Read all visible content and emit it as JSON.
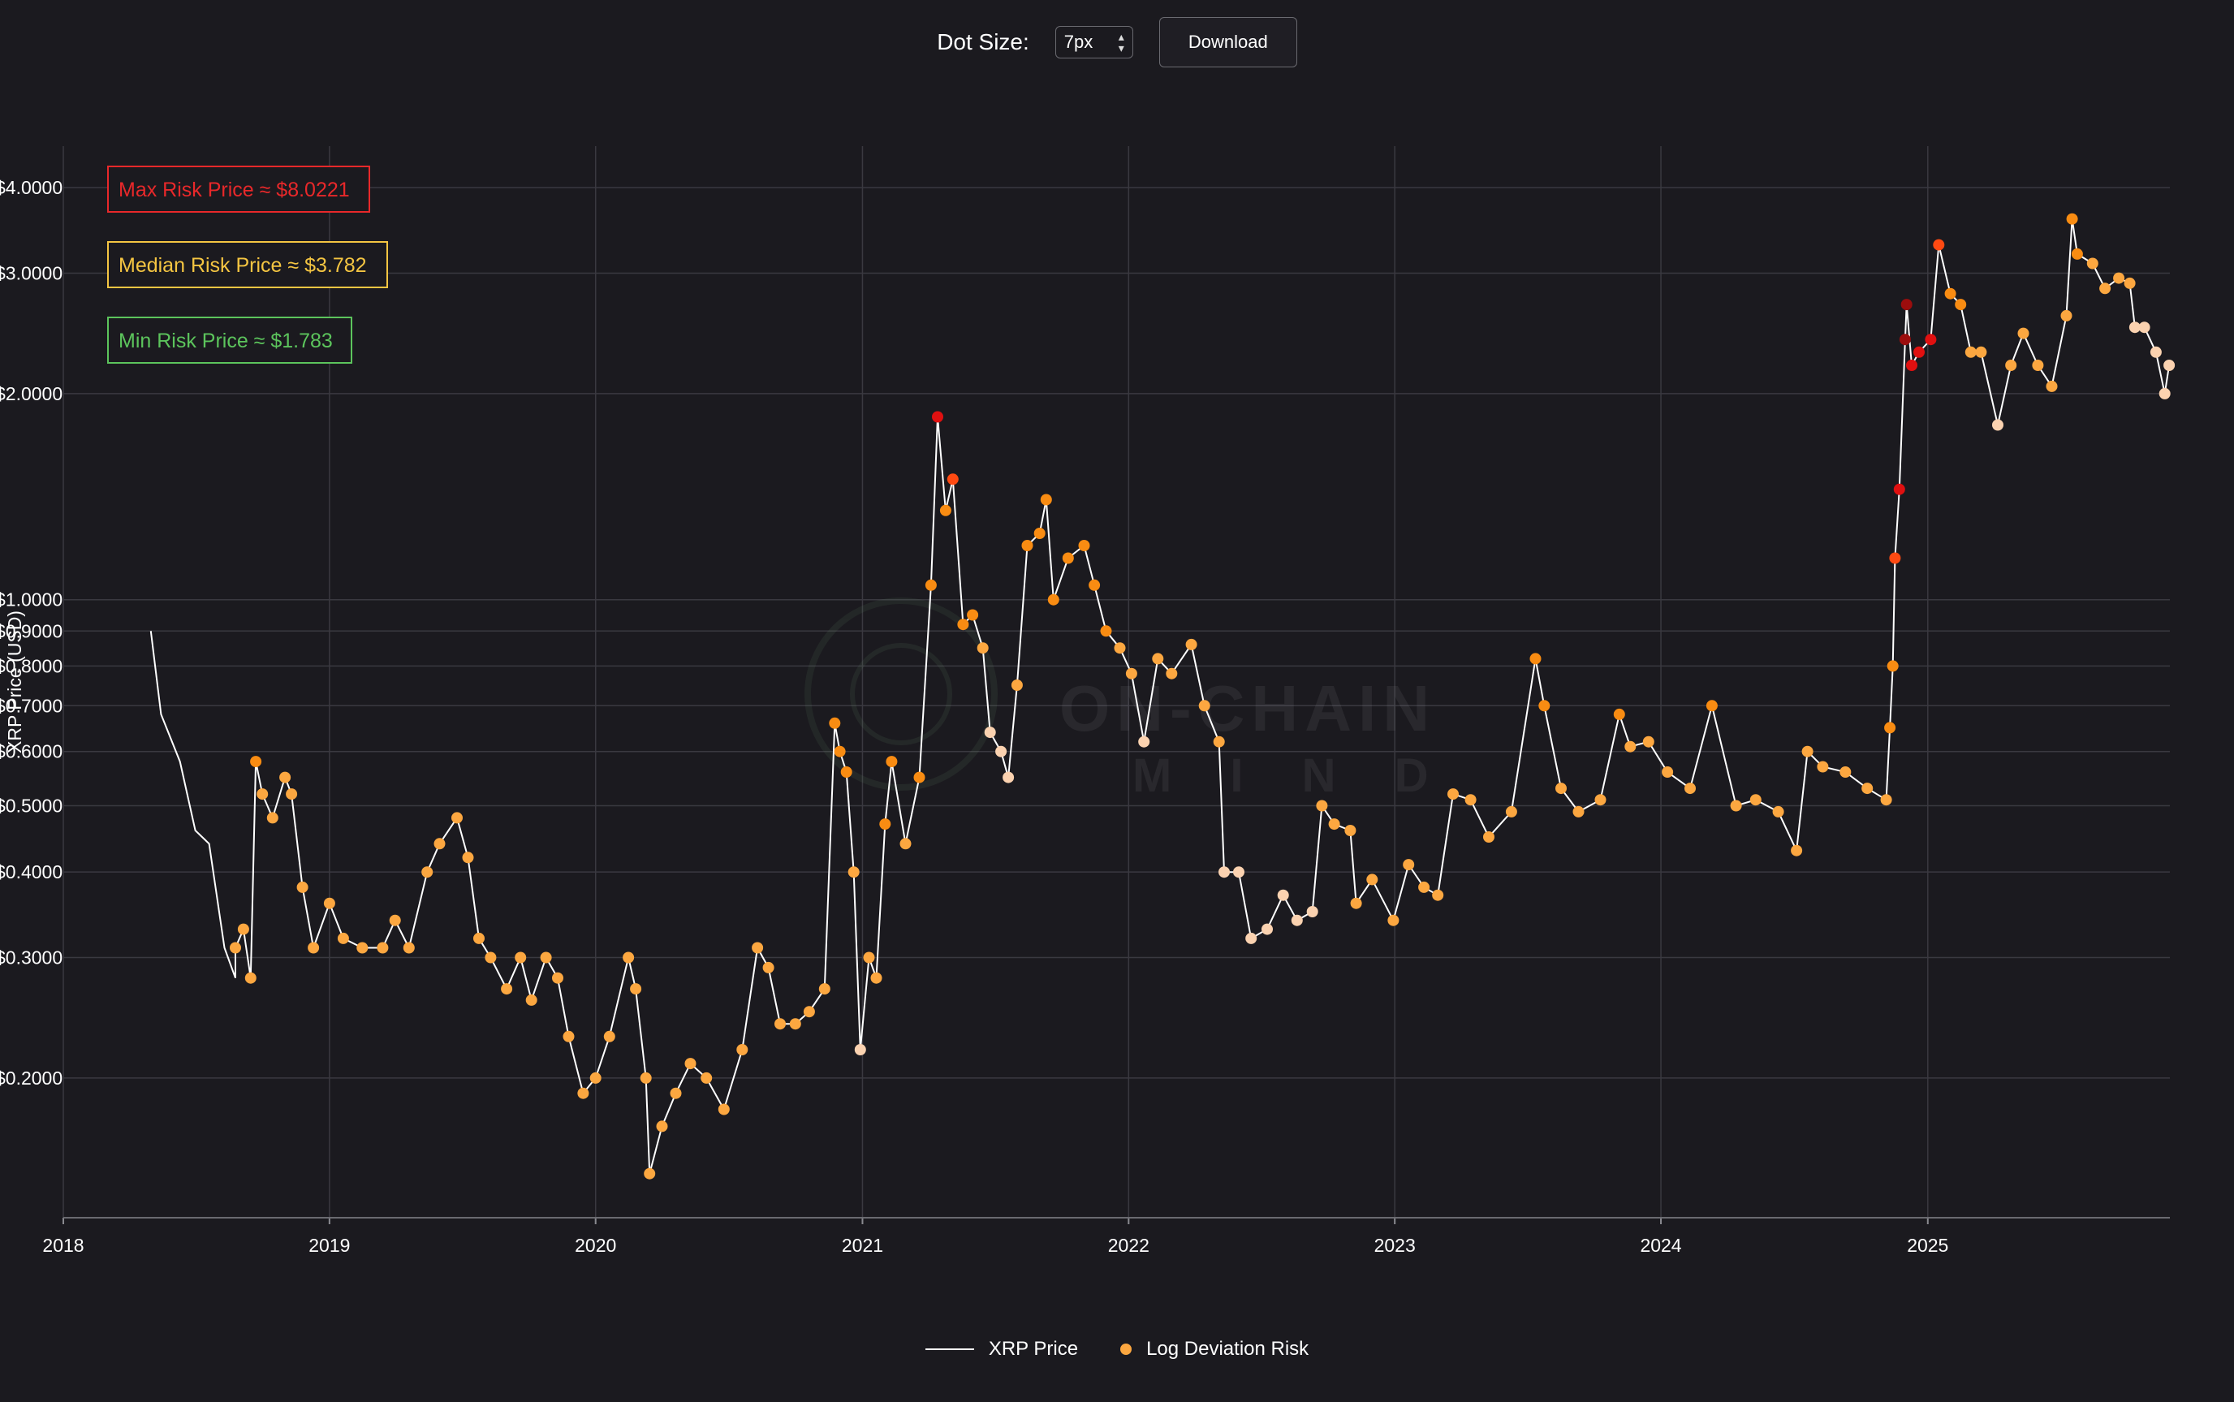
{
  "toolbar": {
    "dot_size_label": "Dot Size:",
    "dot_size_value": "7px",
    "download_label": "Download"
  },
  "annotations": [
    {
      "label": "Max Risk Price ≈ $8.0221",
      "color": "#e8282a"
    },
    {
      "label": "Median Risk Price ≈ $3.782",
      "color": "#f4c542"
    },
    {
      "label": "Min Risk Price ≈ $1.783",
      "color": "#5cc45c"
    }
  ],
  "watermark": {
    "line1": "ON-CHAIN",
    "line2": "M I N D"
  },
  "legend": {
    "price_label": "XRP Price",
    "risk_label": "Log Deviation Risk"
  },
  "colors": {
    "background": "#1b1a1f",
    "grid": "#3a3940",
    "price_line": "#ffffff",
    "risk_low": "#fbd2b0",
    "risk_mid": "#fca740",
    "risk_high": "#f98c12",
    "risk_very_high": "#ff4a12",
    "risk_extreme": "#e01010",
    "risk_max": "#9c0d0d"
  },
  "chart_data": {
    "type": "scatter",
    "title": "",
    "xlabel": "",
    "ylabel": "XRP Price (USD)",
    "y_scale": "log",
    "xlim": [
      "2018-01-01",
      "2025-11-29"
    ],
    "ylim": [
      0.125,
      4.6
    ],
    "x_ticks": [
      "2018",
      "2019",
      "2020",
      "2021",
      "2022",
      "2023",
      "2024",
      "2025"
    ],
    "y_ticks": [
      {
        "value": 4.0,
        "label": "$4.0000"
      },
      {
        "value": 3.0,
        "label": "$3.0000"
      },
      {
        "value": 2.0,
        "label": "$2.0000"
      },
      {
        "value": 1.0,
        "label": "$1.0000"
      },
      {
        "value": 0.9,
        "label": "$0.9000"
      },
      {
        "value": 0.8,
        "label": "$0.8000"
      },
      {
        "value": 0.7,
        "label": "$0.7000"
      },
      {
        "value": 0.6,
        "label": "$0.6000"
      },
      {
        "value": 0.5,
        "label": "$0.5000"
      },
      {
        "value": 0.4,
        "label": "$0.4000"
      },
      {
        "value": 0.3,
        "label": "$0.3000"
      },
      {
        "value": 0.2,
        "label": "$0.2000"
      }
    ],
    "grid": true,
    "legend_position": "bottom-center",
    "series": [
      {
        "name": "XRP Price",
        "type": "line",
        "points": [
          [
            "2018-05-01",
            0.9
          ],
          [
            "2018-05-15",
            0.68
          ],
          [
            "2018-06-10",
            0.58
          ],
          [
            "2018-07-01",
            0.46
          ],
          [
            "2018-07-20",
            0.44
          ],
          [
            "2018-08-10",
            0.31
          ],
          [
            "2018-08-25",
            0.28
          ]
        ]
      },
      {
        "name": "Log Deviation Risk",
        "type": "scatter",
        "points": [
          [
            "2018-08-25",
            0.31,
            0.4
          ],
          [
            "2018-09-05",
            0.33,
            0.45
          ],
          [
            "2018-09-15",
            0.28,
            0.4
          ],
          [
            "2018-09-22",
            0.58,
            0.55
          ],
          [
            "2018-10-01",
            0.52,
            0.5
          ],
          [
            "2018-10-15",
            0.48,
            0.5
          ],
          [
            "2018-11-01",
            0.55,
            0.5
          ],
          [
            "2018-11-10",
            0.52,
            0.5
          ],
          [
            "2018-11-25",
            0.38,
            0.45
          ],
          [
            "2018-12-10",
            0.31,
            0.42
          ],
          [
            "2019-01-01",
            0.36,
            0.45
          ],
          [
            "2019-01-20",
            0.32,
            0.42
          ],
          [
            "2019-02-15",
            0.31,
            0.42
          ],
          [
            "2019-03-15",
            0.31,
            0.42
          ],
          [
            "2019-04-01",
            0.34,
            0.45
          ],
          [
            "2019-04-20",
            0.31,
            0.42
          ],
          [
            "2019-05-15",
            0.4,
            0.48
          ],
          [
            "2019-06-01",
            0.44,
            0.5
          ],
          [
            "2019-06-25",
            0.48,
            0.52
          ],
          [
            "2019-07-10",
            0.42,
            0.48
          ],
          [
            "2019-07-25",
            0.32,
            0.42
          ],
          [
            "2019-08-10",
            0.3,
            0.42
          ],
          [
            "2019-09-01",
            0.27,
            0.4
          ],
          [
            "2019-09-20",
            0.3,
            0.42
          ],
          [
            "2019-10-05",
            0.26,
            0.4
          ],
          [
            "2019-10-25",
            0.3,
            0.42
          ],
          [
            "2019-11-10",
            0.28,
            0.42
          ],
          [
            "2019-11-25",
            0.23,
            0.38
          ],
          [
            "2019-12-15",
            0.19,
            0.35
          ],
          [
            "2020-01-01",
            0.2,
            0.36
          ],
          [
            "2020-01-20",
            0.23,
            0.4
          ],
          [
            "2020-02-15",
            0.3,
            0.45
          ],
          [
            "2020-02-25",
            0.27,
            0.42
          ],
          [
            "2020-03-10",
            0.2,
            0.38
          ],
          [
            "2020-03-15",
            0.145,
            0.32
          ],
          [
            "2020-04-01",
            0.17,
            0.35
          ],
          [
            "2020-04-20",
            0.19,
            0.36
          ],
          [
            "2020-05-10",
            0.21,
            0.38
          ],
          [
            "2020-06-01",
            0.2,
            0.36
          ],
          [
            "2020-06-25",
            0.18,
            0.34
          ],
          [
            "2020-07-20",
            0.22,
            0.4
          ],
          [
            "2020-08-10",
            0.31,
            0.48
          ],
          [
            "2020-08-25",
            0.29,
            0.45
          ],
          [
            "2020-09-10",
            0.24,
            0.42
          ],
          [
            "2020-10-01",
            0.24,
            0.42
          ],
          [
            "2020-10-20",
            0.25,
            0.42
          ],
          [
            "2020-11-10",
            0.27,
            0.44
          ],
          [
            "2020-11-24",
            0.66,
            0.6
          ],
          [
            "2020-12-01",
            0.6,
            0.58
          ],
          [
            "2020-12-10",
            0.56,
            0.55
          ],
          [
            "2020-12-20",
            0.4,
            0.45
          ],
          [
            "2020-12-29",
            0.22,
            0.2
          ],
          [
            "2021-01-10",
            0.3,
            0.4
          ],
          [
            "2021-01-20",
            0.28,
            0.38
          ],
          [
            "2021-02-01",
            0.47,
            0.55
          ],
          [
            "2021-02-10",
            0.58,
            0.58
          ],
          [
            "2021-03-01",
            0.44,
            0.5
          ],
          [
            "2021-03-20",
            0.55,
            0.55
          ],
          [
            "2021-04-05",
            1.05,
            0.65
          ],
          [
            "2021-04-14",
            1.85,
            0.82
          ],
          [
            "2021-04-25",
            1.35,
            0.7
          ],
          [
            "2021-05-05",
            1.5,
            0.72
          ],
          [
            "2021-05-19",
            0.92,
            0.55
          ],
          [
            "2021-06-01",
            0.95,
            0.6
          ],
          [
            "2021-06-15",
            0.85,
            0.5
          ],
          [
            "2021-06-25",
            0.64,
            0.2
          ],
          [
            "2021-07-10",
            0.6,
            0.2
          ],
          [
            "2021-07-20",
            0.55,
            0.15
          ],
          [
            "2021-08-01",
            0.75,
            0.45
          ],
          [
            "2021-08-15",
            1.2,
            0.65
          ],
          [
            "2021-09-01",
            1.25,
            0.66
          ],
          [
            "2021-09-10",
            1.4,
            0.7
          ],
          [
            "2021-09-20",
            1.0,
            0.6
          ],
          [
            "2021-10-10",
            1.15,
            0.62
          ],
          [
            "2021-11-01",
            1.2,
            0.62
          ],
          [
            "2021-11-15",
            1.05,
            0.58
          ],
          [
            "2021-12-01",
            0.9,
            0.55
          ],
          [
            "2021-12-20",
            0.85,
            0.5
          ],
          [
            "2022-01-05",
            0.78,
            0.45
          ],
          [
            "2022-01-22",
            0.62,
            0.25
          ],
          [
            "2022-02-10",
            0.82,
            0.5
          ],
          [
            "2022-03-01",
            0.78,
            0.48
          ],
          [
            "2022-03-28",
            0.86,
            0.52
          ],
          [
            "2022-04-15",
            0.7,
            0.42
          ],
          [
            "2022-05-05",
            0.62,
            0.35
          ],
          [
            "2022-05-12",
            0.4,
            0.15
          ],
          [
            "2022-06-01",
            0.4,
            0.15
          ],
          [
            "2022-06-18",
            0.32,
            0.1
          ],
          [
            "2022-07-10",
            0.33,
            0.12
          ],
          [
            "2022-08-01",
            0.37,
            0.2
          ],
          [
            "2022-08-20",
            0.34,
            0.18
          ],
          [
            "2022-09-10",
            0.35,
            0.2
          ],
          [
            "2022-09-23",
            0.5,
            0.5
          ],
          [
            "2022-10-10",
            0.47,
            0.45
          ],
          [
            "2022-11-01",
            0.46,
            0.45
          ],
          [
            "2022-11-09",
            0.36,
            0.3
          ],
          [
            "2022-12-01",
            0.39,
            0.35
          ],
          [
            "2022-12-30",
            0.34,
            0.3
          ],
          [
            "2023-01-20",
            0.41,
            0.4
          ],
          [
            "2023-02-10",
            0.38,
            0.38
          ],
          [
            "2023-03-01",
            0.37,
            0.35
          ],
          [
            "2023-03-22",
            0.52,
            0.5
          ],
          [
            "2023-04-15",
            0.51,
            0.48
          ],
          [
            "2023-05-10",
            0.45,
            0.42
          ],
          [
            "2023-06-10",
            0.49,
            0.45
          ],
          [
            "2023-07-13",
            0.82,
            0.6
          ],
          [
            "2023-07-25",
            0.7,
            0.55
          ],
          [
            "2023-08-17",
            0.53,
            0.48
          ],
          [
            "2023-09-10",
            0.49,
            0.45
          ],
          [
            "2023-10-10",
            0.51,
            0.47
          ],
          [
            "2023-11-05",
            0.68,
            0.55
          ],
          [
            "2023-11-20",
            0.61,
            0.5
          ],
          [
            "2023-12-15",
            0.62,
            0.5
          ],
          [
            "2024-01-10",
            0.56,
            0.48
          ],
          [
            "2024-02-10",
            0.53,
            0.47
          ],
          [
            "2024-03-11",
            0.7,
            0.55
          ],
          [
            "2024-04-13",
            0.5,
            0.45
          ],
          [
            "2024-05-10",
            0.51,
            0.46
          ],
          [
            "2024-06-10",
            0.49,
            0.45
          ],
          [
            "2024-07-05",
            0.43,
            0.4
          ],
          [
            "2024-07-20",
            0.6,
            0.5
          ],
          [
            "2024-08-10",
            0.57,
            0.5
          ],
          [
            "2024-09-10",
            0.56,
            0.5
          ],
          [
            "2024-10-10",
            0.53,
            0.48
          ],
          [
            "2024-11-05",
            0.51,
            0.48
          ],
          [
            "2024-11-10",
            0.65,
            0.6
          ],
          [
            "2024-11-14",
            0.8,
            0.7
          ],
          [
            "2024-11-17",
            1.15,
            0.8
          ],
          [
            "2024-11-23",
            1.45,
            0.85
          ],
          [
            "2024-12-01",
            2.4,
            0.95
          ],
          [
            "2024-12-03",
            2.7,
            1.0
          ],
          [
            "2024-12-10",
            2.2,
            0.88
          ],
          [
            "2024-12-20",
            2.3,
            0.85
          ],
          [
            "2025-01-05",
            2.4,
            0.82
          ],
          [
            "2025-01-16",
            3.3,
            0.78
          ],
          [
            "2025-02-01",
            2.8,
            0.6
          ],
          [
            "2025-02-15",
            2.7,
            0.58
          ],
          [
            "2025-03-01",
            2.3,
            0.45
          ],
          [
            "2025-03-15",
            2.3,
            0.42
          ],
          [
            "2025-04-07",
            1.8,
            0.25
          ],
          [
            "2025-04-25",
            2.2,
            0.4
          ],
          [
            "2025-05-12",
            2.45,
            0.45
          ],
          [
            "2025-06-01",
            2.2,
            0.4
          ],
          [
            "2025-06-20",
            2.05,
            0.35
          ],
          [
            "2025-07-10",
            2.6,
            0.45
          ],
          [
            "2025-07-18",
            3.6,
            0.6
          ],
          [
            "2025-07-25",
            3.2,
            0.55
          ],
          [
            "2025-08-15",
            3.1,
            0.52
          ],
          [
            "2025-09-01",
            2.85,
            0.5
          ],
          [
            "2025-09-20",
            2.95,
            0.48
          ],
          [
            "2025-10-05",
            2.9,
            0.45
          ],
          [
            "2025-10-12",
            2.5,
            0.2
          ],
          [
            "2025-10-25",
            2.5,
            0.18
          ],
          [
            "2025-11-10",
            2.3,
            0.15
          ],
          [
            "2025-11-22",
            2.0,
            0.12
          ],
          [
            "2025-11-28",
            2.2,
            0.15
          ]
        ]
      }
    ]
  }
}
